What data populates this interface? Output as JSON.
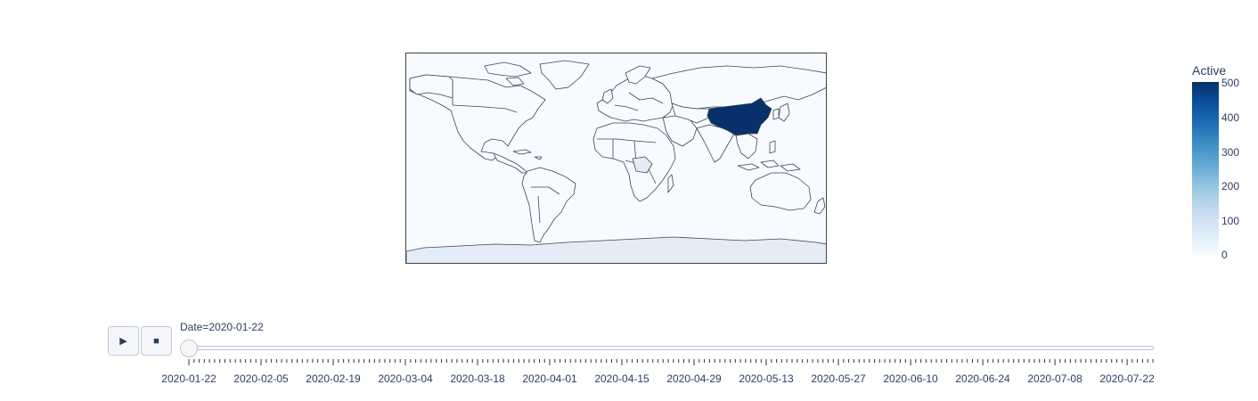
{
  "map": {
    "highlight_country": "China",
    "highlight_color": "#08306b",
    "light_country_color": "#e3ecf7",
    "base_color": "#f7fbff"
  },
  "colorbar": {
    "title": "Active",
    "ticks": [
      "500",
      "400",
      "300",
      "200",
      "100",
      "0"
    ],
    "range": [
      0,
      500
    ],
    "colors": [
      "#f7fbff",
      "#deebf7",
      "#c6dbef",
      "#9ecae1",
      "#6baed6",
      "#4292c6",
      "#2171b5",
      "#08519c",
      "#08306b"
    ]
  },
  "controls": {
    "play_icon": "play-icon",
    "play_glyph": "▶",
    "stop_icon": "stop-icon",
    "stop_glyph": "■"
  },
  "slider": {
    "current_label": "Date=2020-01-22",
    "current_index": 0,
    "total_steps": 188,
    "tick_labels": [
      "2020-01-22",
      "2020-02-05",
      "2020-02-19",
      "2020-03-04",
      "2020-03-18",
      "2020-04-01",
      "2020-04-15",
      "2020-04-29",
      "2020-05-13",
      "2020-05-27",
      "2020-06-10",
      "2020-06-24",
      "2020-07-08",
      "2020-07-22"
    ]
  }
}
